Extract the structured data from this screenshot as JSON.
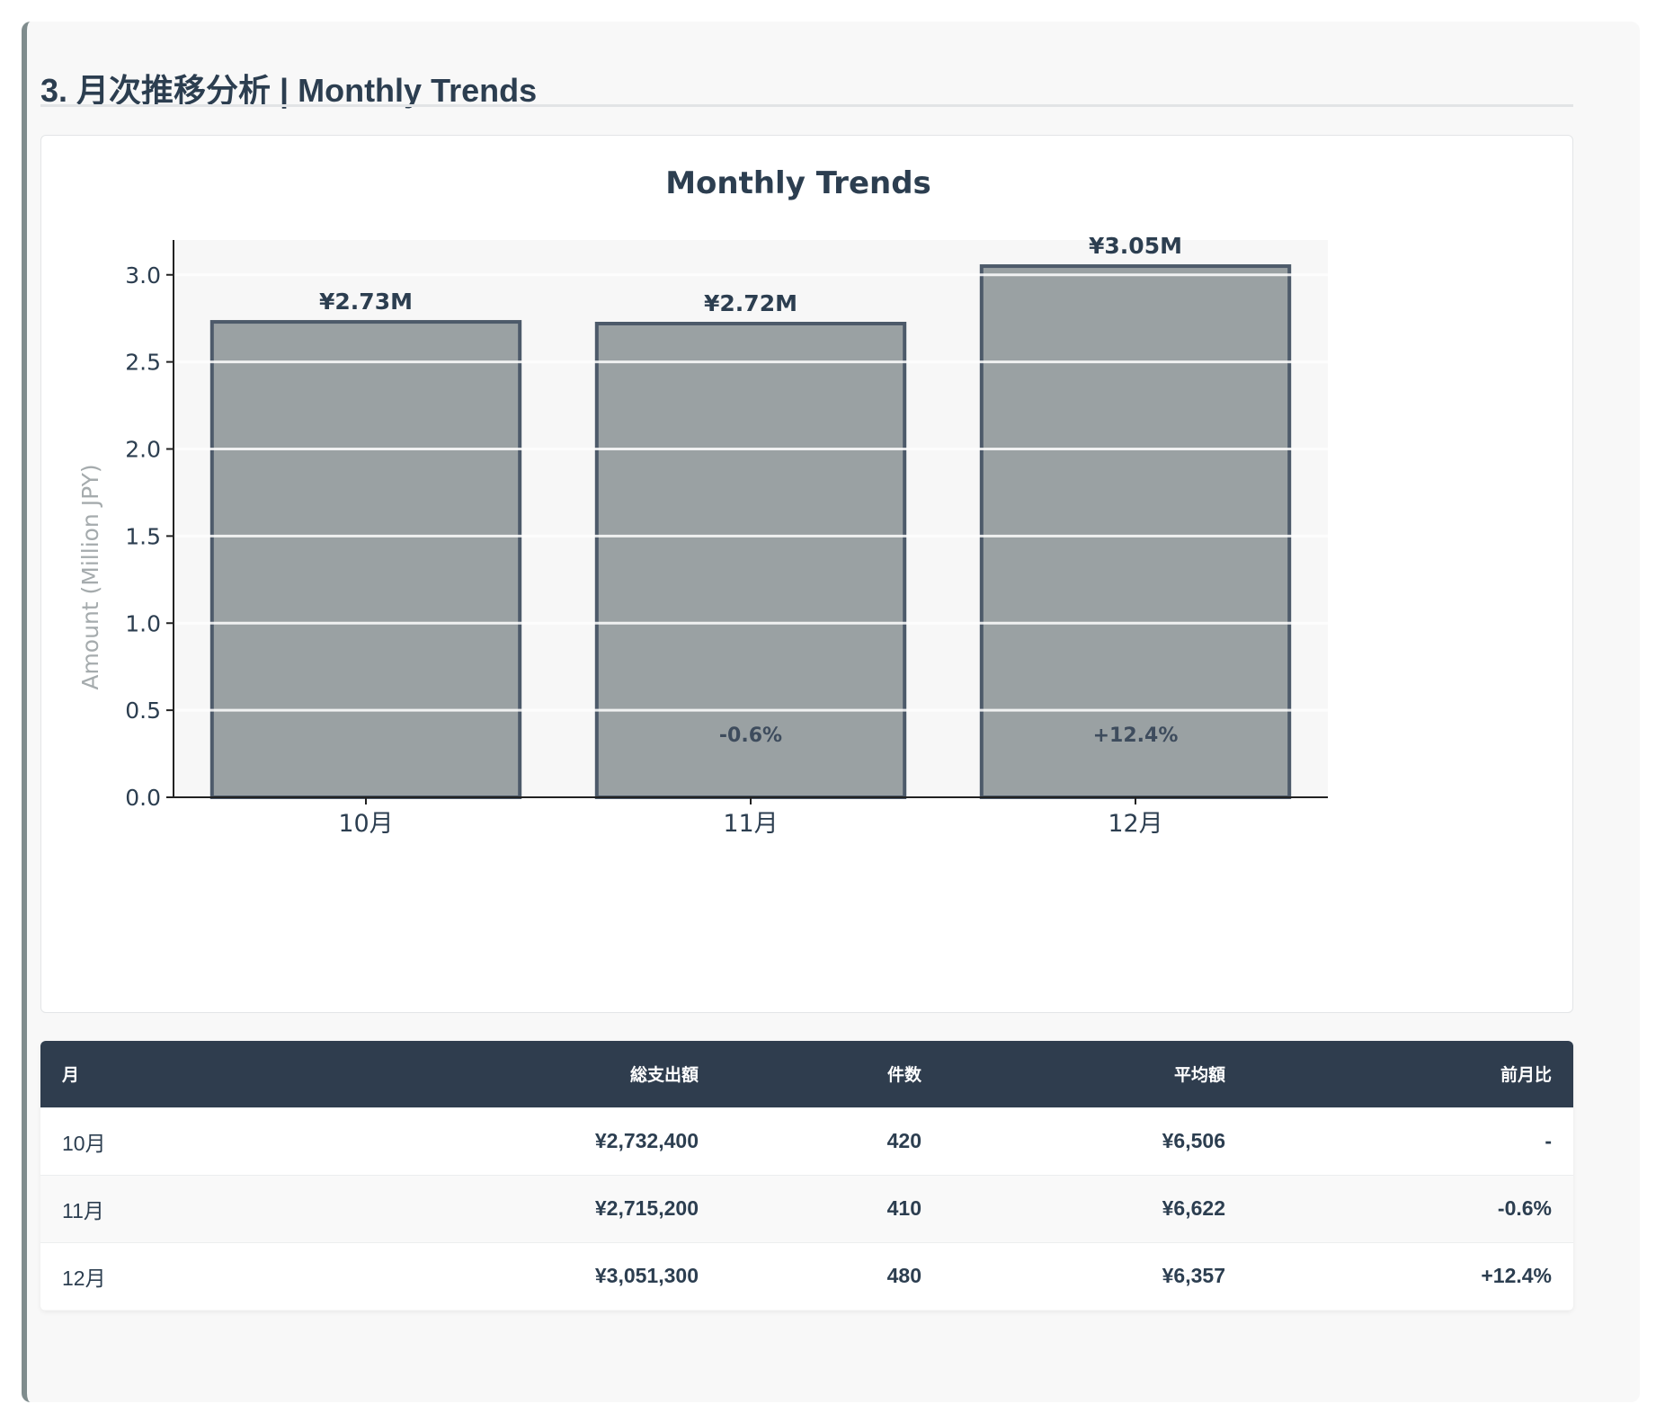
{
  "section": {
    "title": "3. 月次推移分析 | Monthly Trends"
  },
  "chart_data": {
    "type": "bar",
    "title": "Monthly Trends",
    "xlabel": "",
    "ylabel": "Amount (Million JPY)",
    "categories": [
      "10月",
      "11月",
      "12月"
    ],
    "values": [
      2.73,
      2.72,
      3.05
    ],
    "value_labels": [
      "¥2.73M",
      "¥2.72M",
      "¥3.05M"
    ],
    "change_labels": [
      "",
      "-0.6%",
      "+12.4%"
    ],
    "ylim": [
      0,
      3.2
    ],
    "yticks": [
      0.0,
      0.5,
      1.0,
      1.5,
      2.0,
      2.5,
      3.0
    ],
    "ytick_labels": [
      "0.0",
      "0.5",
      "1.0",
      "1.5",
      "2.0",
      "2.5",
      "3.0"
    ],
    "grid": true,
    "legend": "none",
    "colors": {
      "bar_fill": "#9aa1a3",
      "bar_edge": "#4d5a6a",
      "plot_bg": "#f7f7f7",
      "text": "#2c3e50",
      "ylabel": "#a5abad"
    }
  },
  "table": {
    "headers": [
      "月",
      "総支出額",
      "件数",
      "平均額",
      "前月比"
    ],
    "rows": [
      [
        "10月",
        "¥2,732,400",
        "420",
        "¥6,506",
        "-"
      ],
      [
        "11月",
        "¥2,715,200",
        "410",
        "¥6,622",
        "-0.6%"
      ],
      [
        "12月",
        "¥3,051,300",
        "480",
        "¥6,357",
        "+12.4%"
      ]
    ]
  }
}
